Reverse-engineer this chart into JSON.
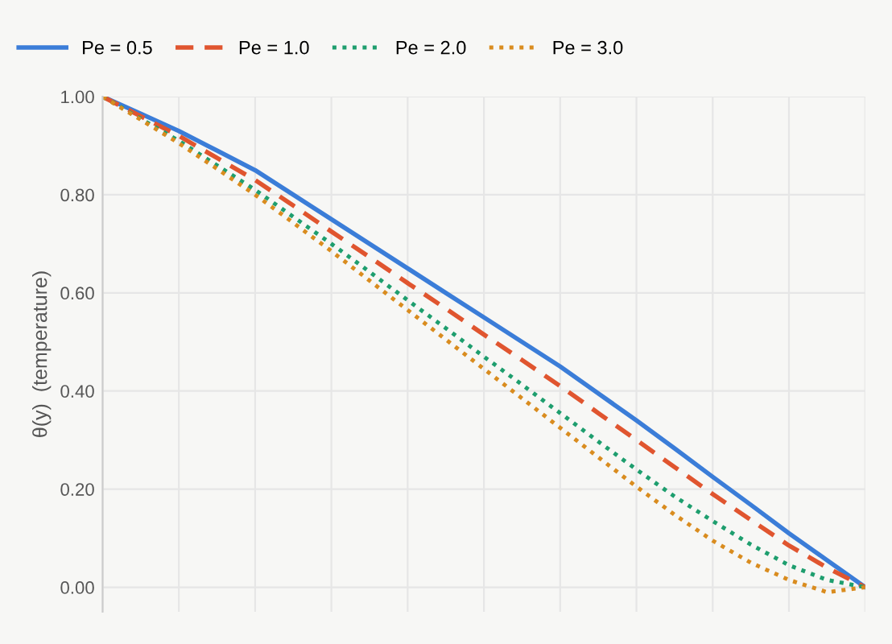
{
  "chart_data": {
    "type": "line",
    "ylabel": "θ(y)  (temperature)",
    "categories": [
      null,
      null,
      null,
      null,
      null,
      null,
      null,
      null,
      null,
      null,
      null,
      null,
      null,
      null,
      null,
      null,
      null,
      null,
      null,
      null,
      null
    ],
    "series": [
      {
        "name": "Pe = 0.5",
        "color": "#3b7dd8",
        "line_style": "solid",
        "values": [
          1,
          0.965,
          0.93,
          0.89,
          0.85,
          0.8,
          0.75,
          0.7,
          0.65,
          0.6,
          0.55,
          0.5,
          0.45,
          0.395,
          0.34,
          0.283,
          0.225,
          0.168,
          0.11,
          0.055,
          0
        ]
      },
      {
        "name": "Pe = 1.0",
        "color": "#e0552f",
        "line_style": "dashed",
        "values": [
          1,
          0.96,
          0.92,
          0.875,
          0.83,
          0.778,
          0.725,
          0.673,
          0.62,
          0.568,
          0.515,
          0.463,
          0.41,
          0.355,
          0.3,
          0.245,
          0.19,
          0.137,
          0.085,
          0.04,
          0
        ]
      },
      {
        "name": "Pe = 2.0",
        "color": "#1e9e6e",
        "line_style": "dotted",
        "values": [
          1,
          0.955,
          0.91,
          0.86,
          0.81,
          0.755,
          0.7,
          0.643,
          0.585,
          0.528,
          0.47,
          0.413,
          0.355,
          0.297,
          0.24,
          0.185,
          0.135,
          0.087,
          0.045,
          0.015,
          0
        ]
      },
      {
        "name": "Pe = 3.0",
        "color": "#d98c1f",
        "line_style": "dotted",
        "values": [
          1,
          0.953,
          0.905,
          0.853,
          0.8,
          0.743,
          0.685,
          0.625,
          0.565,
          0.505,
          0.445,
          0.385,
          0.325,
          0.265,
          0.205,
          0.148,
          0.095,
          0.05,
          0.015,
          -0.01,
          0
        ]
      }
    ],
    "ylim": [
      -0.05,
      1.0
    ],
    "yticks": [
      {
        "value": 0,
        "label": "0.00"
      },
      {
        "value": 0.2,
        "label": "0.20"
      },
      {
        "value": 0.4,
        "label": "0.40"
      },
      {
        "value": 0.6,
        "label": "0.60"
      },
      {
        "value": 0.8,
        "label": "0.80"
      },
      {
        "value": 1.0,
        "label": "1.00"
      }
    ],
    "grid": true,
    "legend": "top left",
    "tick_labels": "y",
    "marker": "none"
  }
}
